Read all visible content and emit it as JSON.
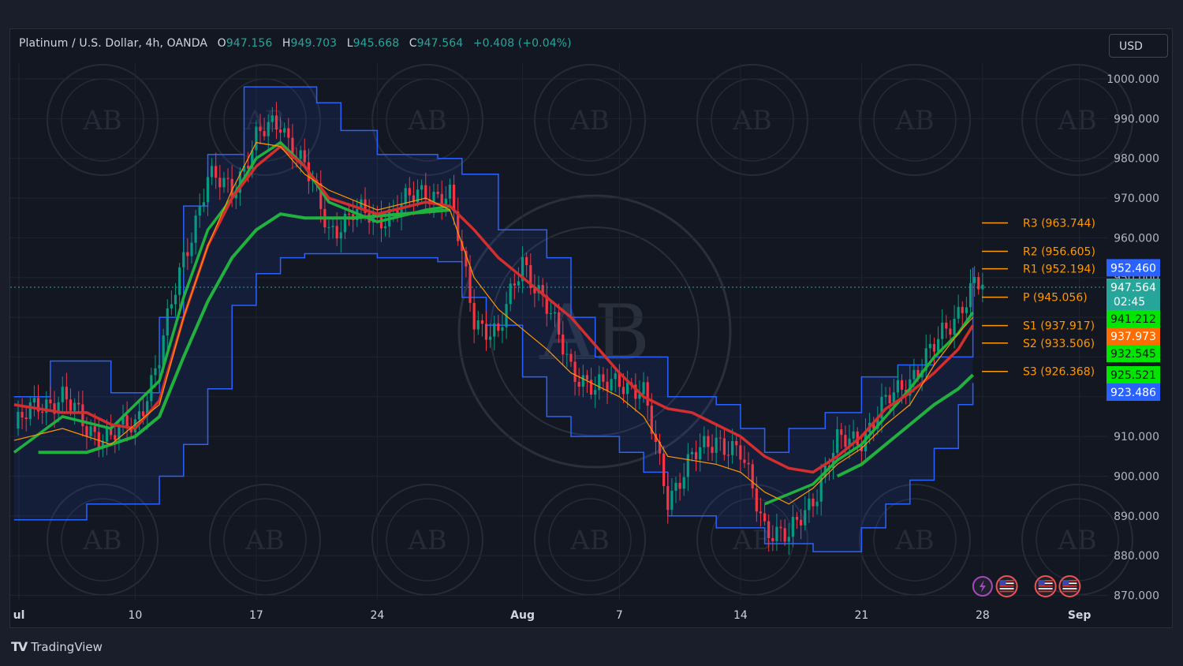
{
  "header": {
    "symbol": "Platinum / U.S. Dollar, 4h, OANDA",
    "open_label": "O",
    "open": "947.156",
    "high_label": "H",
    "high": "949.703",
    "low_label": "L",
    "low": "945.668",
    "close_label": "C",
    "close": "947.564",
    "change": "+0.408 (+0.04%)"
  },
  "currency_button": "USD",
  "footer": {
    "brand": "TradingView"
  },
  "colors": {
    "background": "#131722",
    "up": "#26a69a",
    "down": "#ef5350",
    "candle_up": "#089981",
    "candle_down": "#f23645",
    "channel": "#2962ff",
    "ema_green": "#21b13f",
    "ema_red": "#d32f2f",
    "ema_orange": "#ff9800"
  },
  "chart_data": {
    "type": "candlestick",
    "title": "Platinum / U.S. Dollar, 4h, OANDA",
    "ylim": [
      868,
      1007
    ],
    "y_ticks": [
      "1000.000",
      "990.000",
      "980.000",
      "970.000",
      "960.000",
      "950.000",
      "940.000",
      "930.000",
      "920.000",
      "910.000",
      "900.000",
      "890.000",
      "880.000",
      "870.000"
    ],
    "x_range_days": [
      2,
      42
    ],
    "x_ticks": [
      {
        "label": "ul",
        "day": 2.2
      },
      {
        "label": "10",
        "day": 7
      },
      {
        "label": "17",
        "day": 12
      },
      {
        "label": "24",
        "day": 17
      },
      {
        "label": "Aug",
        "day": 23
      },
      {
        "label": "7",
        "day": 27
      },
      {
        "label": "14",
        "day": 32
      },
      {
        "label": "21",
        "day": 37
      },
      {
        "label": "28",
        "day": 42
      },
      {
        "label": "Sep",
        "day": 46
      }
    ],
    "price_path": [
      {
        "day": 2.0,
        "v": 912
      },
      {
        "day": 3.0,
        "v": 918
      },
      {
        "day": 4.0,
        "v": 920
      },
      {
        "day": 5.0,
        "v": 912
      },
      {
        "day": 6.0,
        "v": 910
      },
      {
        "day": 7.0,
        "v": 913
      },
      {
        "day": 8.0,
        "v": 930
      },
      {
        "day": 9.0,
        "v": 955
      },
      {
        "day": 10.0,
        "v": 975
      },
      {
        "day": 11.0,
        "v": 972
      },
      {
        "day": 12.0,
        "v": 985
      },
      {
        "day": 13.0,
        "v": 989
      },
      {
        "day": 14.0,
        "v": 978
      },
      {
        "day": 15.0,
        "v": 962
      },
      {
        "day": 16.0,
        "v": 966
      },
      {
        "day": 17.0,
        "v": 965
      },
      {
        "day": 18.0,
        "v": 968
      },
      {
        "day": 19.0,
        "v": 972
      },
      {
        "day": 20.0,
        "v": 970
      },
      {
        "day": 21.0,
        "v": 940
      },
      {
        "day": 22.0,
        "v": 935
      },
      {
        "day": 23.0,
        "v": 955
      },
      {
        "day": 24.0,
        "v": 942
      },
      {
        "day": 25.0,
        "v": 928
      },
      {
        "day": 26.0,
        "v": 921
      },
      {
        "day": 27.0,
        "v": 925
      },
      {
        "day": 28.0,
        "v": 920
      },
      {
        "day": 29.0,
        "v": 895
      },
      {
        "day": 30.0,
        "v": 904
      },
      {
        "day": 31.0,
        "v": 910
      },
      {
        "day": 32.0,
        "v": 905
      },
      {
        "day": 33.0,
        "v": 888
      },
      {
        "day": 34.0,
        "v": 884
      },
      {
        "day": 35.0,
        "v": 895
      },
      {
        "day": 36.0,
        "v": 908
      },
      {
        "day": 37.0,
        "v": 910
      },
      {
        "day": 38.0,
        "v": 918
      },
      {
        "day": 39.0,
        "v": 925
      },
      {
        "day": 40.0,
        "v": 932
      },
      {
        "day": 41.0,
        "v": 942
      },
      {
        "day": 41.6,
        "v": 948
      },
      {
        "day": 42.0,
        "v": 947.564
      }
    ],
    "channel_upper": [
      {
        "day": 2,
        "v": 920
      },
      {
        "day": 3.5,
        "v": 929
      },
      {
        "day": 5,
        "v": 929
      },
      {
        "day": 6,
        "v": 921
      },
      {
        "day": 7,
        "v": 921
      },
      {
        "day": 8,
        "v": 940
      },
      {
        "day": 9,
        "v": 968
      },
      {
        "day": 10,
        "v": 981
      },
      {
        "day": 11,
        "v": 981
      },
      {
        "day": 11.5,
        "v": 998
      },
      {
        "day": 13,
        "v": 998
      },
      {
        "day": 14.5,
        "v": 994
      },
      {
        "day": 15.5,
        "v": 987
      },
      {
        "day": 17,
        "v": 981
      },
      {
        "day": 19.5,
        "v": 980
      },
      {
        "day": 20.5,
        "v": 976
      },
      {
        "day": 22,
        "v": 962
      },
      {
        "day": 23,
        "v": 962
      },
      {
        "day": 24,
        "v": 955
      },
      {
        "day": 25,
        "v": 940
      },
      {
        "day": 26,
        "v": 930
      },
      {
        "day": 28,
        "v": 930
      },
      {
        "day": 29,
        "v": 920
      },
      {
        "day": 31,
        "v": 918
      },
      {
        "day": 32,
        "v": 912
      },
      {
        "day": 33,
        "v": 906
      },
      {
        "day": 34,
        "v": 912
      },
      {
        "day": 35.5,
        "v": 916
      },
      {
        "day": 37,
        "v": 925
      },
      {
        "day": 38.5,
        "v": 928
      },
      {
        "day": 40,
        "v": 930
      },
      {
        "day": 41.6,
        "v": 952.5
      }
    ],
    "channel_lower": [
      {
        "day": 2,
        "v": 889
      },
      {
        "day": 4,
        "v": 889
      },
      {
        "day": 5,
        "v": 893
      },
      {
        "day": 7,
        "v": 893
      },
      {
        "day": 8,
        "v": 900
      },
      {
        "day": 9,
        "v": 908
      },
      {
        "day": 10,
        "v": 922
      },
      {
        "day": 11,
        "v": 943
      },
      {
        "day": 12,
        "v": 951
      },
      {
        "day": 13,
        "v": 955
      },
      {
        "day": 14,
        "v": 956
      },
      {
        "day": 15,
        "v": 956
      },
      {
        "day": 17,
        "v": 955
      },
      {
        "day": 19.5,
        "v": 954
      },
      {
        "day": 20.5,
        "v": 945
      },
      {
        "day": 21.5,
        "v": 938
      },
      {
        "day": 23,
        "v": 925
      },
      {
        "day": 24,
        "v": 915
      },
      {
        "day": 25,
        "v": 910
      },
      {
        "day": 27,
        "v": 906
      },
      {
        "day": 28,
        "v": 901
      },
      {
        "day": 29,
        "v": 890
      },
      {
        "day": 31,
        "v": 887
      },
      {
        "day": 32,
        "v": 887
      },
      {
        "day": 33,
        "v": 883
      },
      {
        "day": 35,
        "v": 881
      },
      {
        "day": 36,
        "v": 881
      },
      {
        "day": 37,
        "v": 887
      },
      {
        "day": 38,
        "v": 893
      },
      {
        "day": 39,
        "v": 899
      },
      {
        "day": 40,
        "v": 907
      },
      {
        "day": 41,
        "v": 918
      },
      {
        "day": 41.6,
        "v": 923.486
      }
    ],
    "ema_fast_green": [
      {
        "day": 2,
        "v": 906
      },
      {
        "day": 4,
        "v": 915
      },
      {
        "day": 6,
        "v": 912
      },
      {
        "day": 8,
        "v": 924
      },
      {
        "day": 9,
        "v": 945
      },
      {
        "day": 10,
        "v": 962
      },
      {
        "day": 11,
        "v": 970
      },
      {
        "day": 12,
        "v": 980
      },
      {
        "day": 13,
        "v": 984
      },
      {
        "day": 14,
        "v": 978
      },
      {
        "day": 15,
        "v": 969
      },
      {
        "day": 17,
        "v": 964
      },
      {
        "day": 19,
        "v": 967
      },
      {
        "day": 20,
        "v": 968
      }
    ],
    "ema_slow_green": [
      {
        "day": 3,
        "v": 906
      },
      {
        "day": 5,
        "v": 906
      },
      {
        "day": 7,
        "v": 910
      },
      {
        "day": 8,
        "v": 915
      },
      {
        "day": 9,
        "v": 930
      },
      {
        "day": 10,
        "v": 944
      },
      {
        "day": 11,
        "v": 955
      },
      {
        "day": 12,
        "v": 962
      },
      {
        "day": 13,
        "v": 966
      },
      {
        "day": 14,
        "v": 965
      },
      {
        "day": 16,
        "v": 965
      },
      {
        "day": 18,
        "v": 966
      },
      {
        "day": 20,
        "v": 967
      }
    ],
    "ema_fast_green_2": [
      {
        "day": 33,
        "v": 893
      },
      {
        "day": 35,
        "v": 898
      },
      {
        "day": 36,
        "v": 904
      },
      {
        "day": 37,
        "v": 908
      },
      {
        "day": 38,
        "v": 915
      },
      {
        "day": 39,
        "v": 922
      },
      {
        "day": 40,
        "v": 930
      },
      {
        "day": 41,
        "v": 936
      },
      {
        "day": 41.6,
        "v": 941.2
      }
    ],
    "ema_slow_green_2": [
      {
        "day": 36,
        "v": 900
      },
      {
        "day": 37,
        "v": 903
      },
      {
        "day": 38,
        "v": 908
      },
      {
        "day": 39,
        "v": 913
      },
      {
        "day": 40,
        "v": 918
      },
      {
        "day": 41,
        "v": 922
      },
      {
        "day": 41.6,
        "v": 925.5
      }
    ],
    "ema_red": [
      {
        "day": 2,
        "v": 918
      },
      {
        "day": 3,
        "v": 917
      },
      {
        "day": 4,
        "v": 916
      },
      {
        "day": 5,
        "v": 916
      },
      {
        "day": 6,
        "v": 913
      },
      {
        "day": 7,
        "v": 912
      },
      {
        "day": 8,
        "v": 919
      },
      {
        "day": 9,
        "v": 940
      },
      {
        "day": 10,
        "v": 958
      },
      {
        "day": 11,
        "v": 970
      },
      {
        "day": 12,
        "v": 978
      },
      {
        "day": 13,
        "v": 983
      },
      {
        "day": 14,
        "v": 978
      },
      {
        "day": 15,
        "v": 970
      },
      {
        "day": 17,
        "v": 966
      },
      {
        "day": 19,
        "v": 969
      },
      {
        "day": 20,
        "v": 968
      },
      {
        "day": 21,
        "v": 962
      },
      {
        "day": 22,
        "v": 955
      },
      {
        "day": 23,
        "v": 950
      },
      {
        "day": 24,
        "v": 945
      },
      {
        "day": 25,
        "v": 940
      },
      {
        "day": 26,
        "v": 933
      },
      {
        "day": 27,
        "v": 926
      },
      {
        "day": 28,
        "v": 920
      },
      {
        "day": 29,
        "v": 917
      },
      {
        "day": 30,
        "v": 916
      },
      {
        "day": 31,
        "v": 913
      },
      {
        "day": 32,
        "v": 910
      },
      {
        "day": 33,
        "v": 905
      },
      {
        "day": 34,
        "v": 902
      },
      {
        "day": 35,
        "v": 901
      },
      {
        "day": 36,
        "v": 905
      },
      {
        "day": 37,
        "v": 910
      },
      {
        "day": 38,
        "v": 917
      },
      {
        "day": 39,
        "v": 921
      },
      {
        "day": 40,
        "v": 926
      },
      {
        "day": 41,
        "v": 932
      },
      {
        "day": 41.6,
        "v": 937.97
      }
    ],
    "ema_orange": [
      {
        "day": 2,
        "v": 909
      },
      {
        "day": 4,
        "v": 912
      },
      {
        "day": 6,
        "v": 908
      },
      {
        "day": 8,
        "v": 918
      },
      {
        "day": 9,
        "v": 940
      },
      {
        "day": 10,
        "v": 958
      },
      {
        "day": 11,
        "v": 972
      },
      {
        "day": 12,
        "v": 984
      },
      {
        "day": 13,
        "v": 983
      },
      {
        "day": 14,
        "v": 976
      },
      {
        "day": 15,
        "v": 972
      },
      {
        "day": 17,
        "v": 967
      },
      {
        "day": 19,
        "v": 970
      },
      {
        "day": 20,
        "v": 967
      },
      {
        "day": 21,
        "v": 950
      },
      {
        "day": 22,
        "v": 942
      },
      {
        "day": 23,
        "v": 937
      },
      {
        "day": 24,
        "v": 932
      },
      {
        "day": 25,
        "v": 926
      },
      {
        "day": 26,
        "v": 923
      },
      {
        "day": 27,
        "v": 920
      },
      {
        "day": 28,
        "v": 915
      },
      {
        "day": 29,
        "v": 905
      },
      {
        "day": 30,
        "v": 904
      },
      {
        "day": 31,
        "v": 903
      },
      {
        "day": 32,
        "v": 901
      },
      {
        "day": 33,
        "v": 896
      },
      {
        "day": 34,
        "v": 893
      },
      {
        "day": 35,
        "v": 897
      },
      {
        "day": 36,
        "v": 903
      },
      {
        "day": 37,
        "v": 907
      },
      {
        "day": 38,
        "v": 913
      },
      {
        "day": 39,
        "v": 918
      },
      {
        "day": 40,
        "v": 928
      },
      {
        "day": 41,
        "v": 936
      },
      {
        "day": 41.6,
        "v": 940
      }
    ],
    "pivot_levels": [
      {
        "label": "R3 (963.744)",
        "value": 963.744
      },
      {
        "label": "R2 (956.605)",
        "value": 956.605
      },
      {
        "label": "R1 (952.194)",
        "value": 952.194
      },
      {
        "label": "P (945.056)",
        "value": 945.056
      },
      {
        "label": "S1 (937.917)",
        "value": 937.917
      },
      {
        "label": "S2 (933.506)",
        "value": 933.506
      },
      {
        "label": "S3 (926.368)",
        "value": 926.368
      }
    ],
    "price_tags": [
      {
        "text": "952.460",
        "value": 952.46,
        "color": "#2962ff"
      },
      {
        "text": "947.564",
        "value": 947.564,
        "color": "#26a69a",
        "sub": "02:45"
      },
      {
        "text": "941.212",
        "value": 941.212,
        "color": "#00e600"
      },
      {
        "text": "937.973",
        "value": 937.973,
        "color": "#ff6d00"
      },
      {
        "text": "932.545",
        "value": 932.545,
        "color": "#00e600"
      },
      {
        "text": "925.521",
        "value": 925.521,
        "color": "#00e600"
      },
      {
        "text": "923.486",
        "value": 923.486,
        "color": "#2962ff"
      }
    ],
    "last_price": 947.564,
    "event_icons": [
      {
        "name": "lightning-event-icon",
        "day": 42.0
      },
      {
        "name": "us-flag-event-icon",
        "day": 43.0
      },
      {
        "name": "us-flag-event-icon",
        "day": 44.6
      },
      {
        "name": "us-flag-event-icon",
        "day": 45.6
      }
    ],
    "watermark_text": "AB"
  }
}
